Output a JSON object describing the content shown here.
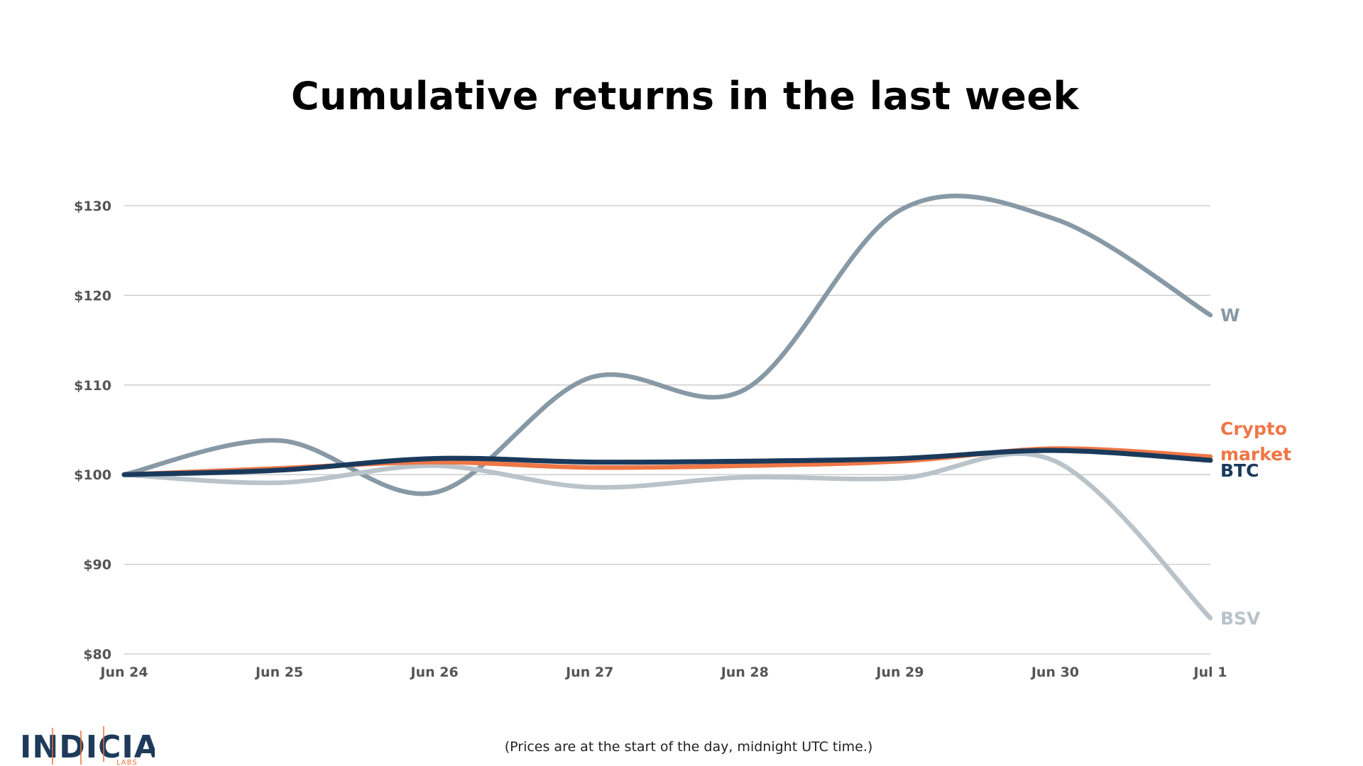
{
  "chart_data": {
    "type": "line",
    "title": "Cumulative returns in the last week",
    "x": [
      "Jun 24",
      "Jun 25",
      "Jun 26",
      "Jun 27",
      "Jun 28",
      "Jun 29",
      "Jun 30",
      "Jul 1"
    ],
    "ylim": [
      80,
      130
    ],
    "yticks": [
      {
        "value": 80,
        "label": "$80"
      },
      {
        "value": 90,
        "label": "$90"
      },
      {
        "value": 100,
        "label": "$100"
      },
      {
        "value": 110,
        "label": "$110"
      },
      {
        "value": 120,
        "label": "$120"
      },
      {
        "value": 130,
        "label": "$130"
      }
    ],
    "grid": true,
    "legend": "end-of-line labels (right)",
    "series": [
      {
        "name": "W",
        "label_lines": [
          "W"
        ],
        "color": "#8899a6",
        "values": [
          100,
          103.8,
          98.0,
          110.8,
          109.5,
          129.5,
          128.5,
          117.8
        ]
      },
      {
        "name": "BSV",
        "label_lines": [
          "BSV"
        ],
        "color": "#b9c3c9",
        "values": [
          100,
          99.1,
          101.0,
          98.6,
          99.7,
          99.6,
          101.5,
          84.0
        ]
      },
      {
        "name": "Crypto market",
        "label_lines": [
          "Crypto",
          "market"
        ],
        "color": "#ee7746",
        "values": [
          100,
          100.7,
          101.4,
          100.8,
          101.0,
          101.5,
          102.9,
          102.0
        ]
      },
      {
        "name": "BTC",
        "label_lines": [
          "BTC"
        ],
        "color": "#1a3a5c",
        "values": [
          100,
          100.5,
          101.8,
          101.4,
          101.5,
          101.8,
          102.7,
          101.6
        ]
      }
    ]
  },
  "footnote": "(Prices are at the start of the day, midnight UTC time.)",
  "logo": {
    "word": "INDICIA",
    "sub": "LABS"
  }
}
